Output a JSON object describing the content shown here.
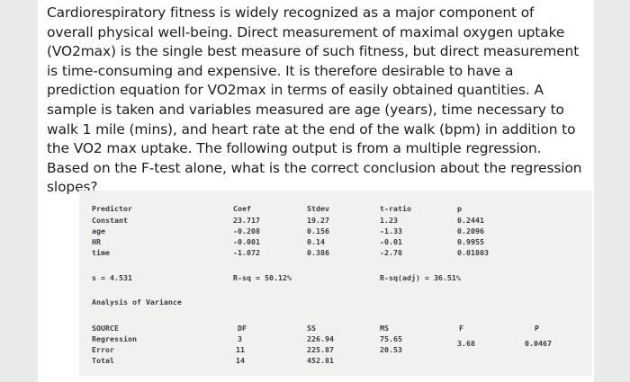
{
  "question": "Cardiorespiratory fitness is widely recognized as a major component of overall physical well-being. Direct measurement of maximal oxygen uptake (VO2max) is the single best measure of such fitness, but direct measurement is time-consuming and expensive. It is therefore desirable to have a prediction equation for VO2max in terms of easily obtained quantities. A sample is taken and variables measured are age (years), time necessary to walk 1 mile (mins), and heart rate at the end of the walk (bpm) in addition to the VO2 max uptake. The following output is from a multiple regression. Based on the F-test alone, what is the correct conclusion about the regression slopes?",
  "coef_table": {
    "headers": [
      "Predictor",
      "Coef",
      "Stdev",
      "t-ratio",
      "p"
    ],
    "rows": [
      [
        "Constant",
        "23.717",
        "19.27",
        "1.23",
        "0.2441"
      ],
      [
        "age",
        "-0.208",
        "0.156",
        "-1.33",
        "0.2096"
      ],
      [
        "HR",
        "-0.001",
        "0.14",
        "-0.01",
        "0.9955"
      ],
      [
        "time",
        "-1.072",
        "0.386",
        "-2.78",
        "0.01803"
      ]
    ]
  },
  "summary": {
    "s": "s = 4.531",
    "rsq": "R-sq = 50.12%",
    "rsq_adj": "R-sq(adj) = 36.51%"
  },
  "anova_title": "Analysis of Variance",
  "anova_table": {
    "headers": [
      "SOURCE",
      "DF",
      "SS",
      "MS",
      "F",
      "P"
    ],
    "rows": [
      [
        "Regression",
        "3",
        "226.94",
        "75.65",
        "3.68",
        "0.0467"
      ],
      [
        "Error",
        "11",
        "225.87",
        "20.53",
        "",
        ""
      ],
      [
        "Total",
        "14",
        "452.81",
        "",
        "",
        ""
      ]
    ]
  }
}
